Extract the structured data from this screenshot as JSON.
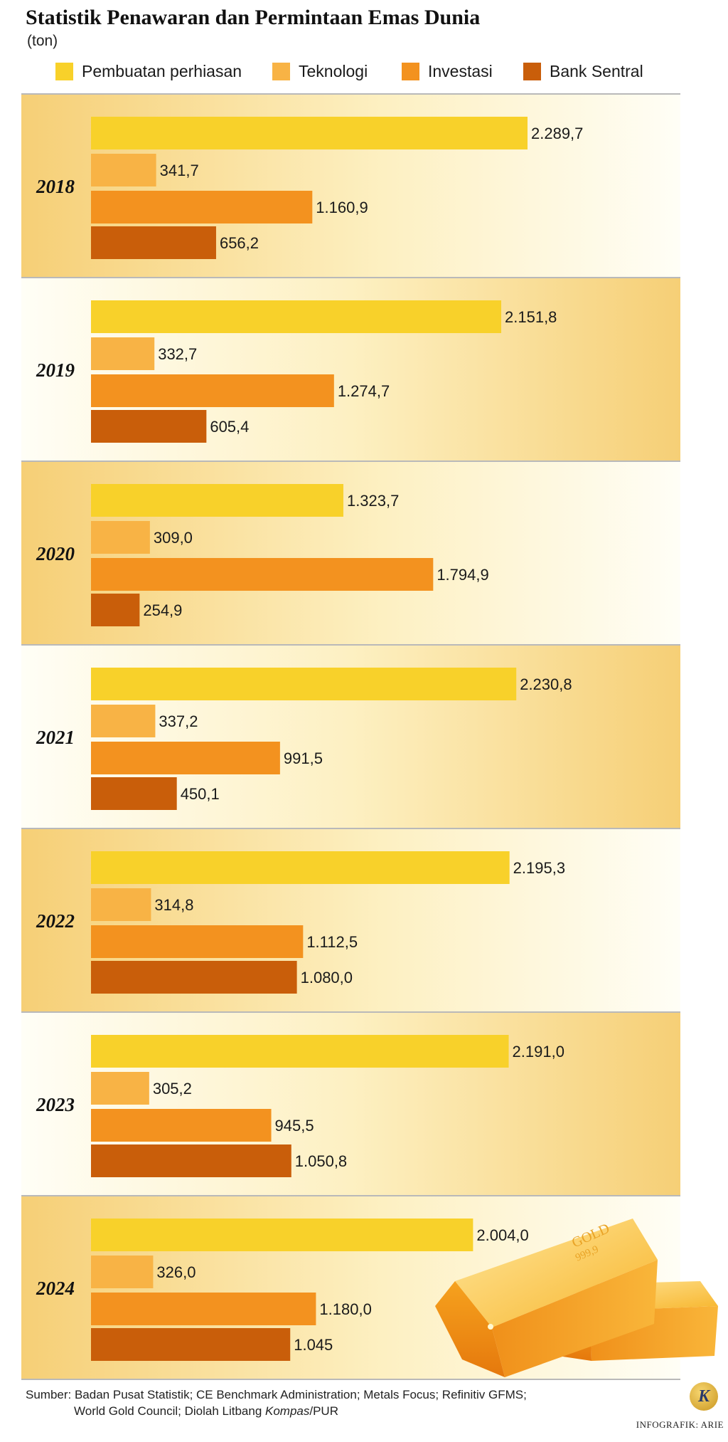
{
  "header": {
    "title": "Statistik Penawaran dan Permintaan Emas Dunia",
    "unit": "(ton)"
  },
  "colors": {
    "Pembuatan perhiasan": "#F8D12A",
    "Teknologi": "#F8B345",
    "Investasi": "#F3921F",
    "Bank Sentral": "#C95E0A",
    "panel_dark": "#F7D27A",
    "panel_light": "#FFFCEB"
  },
  "chart_data": {
    "type": "bar",
    "orientation": "horizontal",
    "title": "Statistik Penawaran dan Permintaan Emas Dunia",
    "unit": "(ton)",
    "categories": [
      "2018",
      "2019",
      "2020",
      "2021",
      "2022",
      "2023",
      "2024"
    ],
    "legend_position": "top",
    "grid": false,
    "xlim": [
      0,
      2500
    ],
    "series": [
      {
        "name": "Pembuatan perhiasan",
        "values": [
          2289.7,
          2151.8,
          1323.7,
          2230.8,
          2195.3,
          2191.0,
          2004.0
        ],
        "labels": [
          "2.289,7",
          "2.151,8",
          "1.323,7",
          "2.230,8",
          "2.195,3",
          "2.191,0",
          "2.004,0"
        ]
      },
      {
        "name": "Teknologi",
        "values": [
          341.7,
          332.7,
          309.0,
          337.2,
          314.8,
          305.2,
          326.0
        ],
        "labels": [
          "341,7",
          "332,7",
          "309,0",
          "337,2",
          "314,8",
          "305,2",
          "326,0"
        ]
      },
      {
        "name": "Investasi",
        "values": [
          1160.9,
          1274.7,
          1794.9,
          991.5,
          1112.5,
          945.5,
          1180.0
        ],
        "labels": [
          "1.160,9",
          "1.274,7",
          "1.794,9",
          "991,5",
          "1.112,5",
          "945,5",
          "1.180,0"
        ]
      },
      {
        "name": "Bank Sentral",
        "values": [
          656.2,
          605.4,
          254.9,
          450.1,
          1080.0,
          1050.8,
          1045
        ],
        "labels": [
          "656,2",
          "605,4",
          "254,9",
          "450,1",
          "1.080,0",
          "1.050,8",
          "1.045"
        ]
      }
    ]
  },
  "illustration": {
    "bar_text": "GOLD",
    "purity": "999,9"
  },
  "footer": {
    "source_line1": "Sumber: Badan Pusat Statistik; CE Benchmark Administration; Metals Focus; Refinitiv GFMS;",
    "source_line2_a": "World Gold Council; Diolah Litbang ",
    "source_line2_italic": "Kompas",
    "source_line2_b": "/PUR",
    "logo_letter": "K",
    "credit": "INFOGRAFIK: ARIE"
  }
}
